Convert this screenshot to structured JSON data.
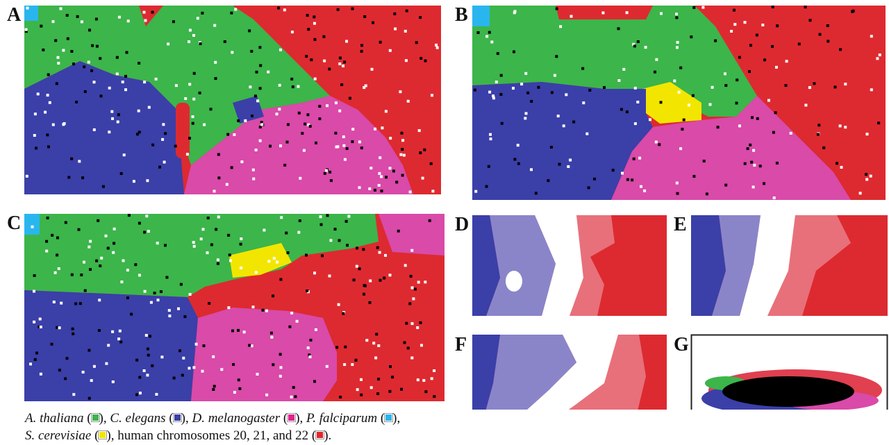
{
  "panel_labels": [
    "A",
    "B",
    "C",
    "D",
    "E",
    "F",
    "G"
  ],
  "caption": {
    "lines": [
      [
        {
          "text": "A. thaliana",
          "italic": true,
          "open": " (",
          "close": "), ",
          "color": "#3cb54a"
        },
        {
          "text": "C. elegans",
          "italic": true,
          "open": " (",
          "close": "), ",
          "color": "#3b3fa8"
        },
        {
          "text": "D. melanogaster",
          "italic": true,
          "open": " (",
          "close": "), ",
          "color": "#e0248e"
        },
        {
          "text": "P. falciparum",
          "italic": true,
          "open": " (",
          "close": "),",
          "color": "#29b6ef"
        }
      ],
      [
        {
          "text": "S. cerevisiae",
          "italic": true,
          "open": " (",
          "close": "), ",
          "color": "#f2e600"
        },
        {
          "text": "human chromosomes 20, 21, and 22",
          "italic": false,
          "open": " (",
          "close": ").",
          "color": "#e0262e"
        }
      ]
    ]
  }
}
